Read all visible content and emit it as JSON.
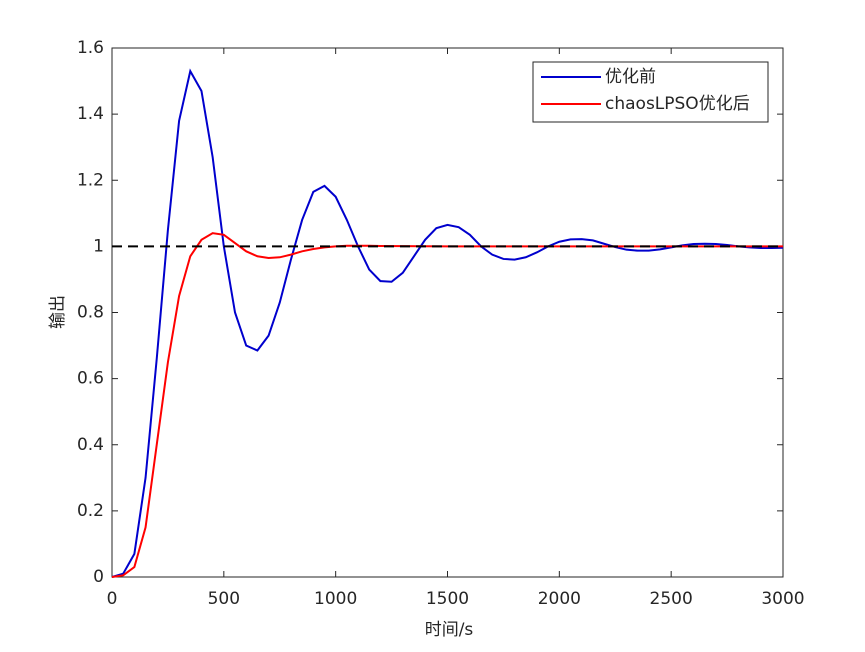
{
  "chart_data": {
    "type": "line",
    "xlabel": "时间/s",
    "ylabel": "输出",
    "xlim": [
      0,
      3000
    ],
    "xticks": [
      0,
      500,
      1000,
      1500,
      2000,
      2500,
      3000
    ],
    "ylim": [
      0,
      1.6
    ],
    "yticks": [
      0,
      0.2,
      0.4,
      0.6,
      0.8,
      1,
      1.2,
      1.4,
      1.6
    ],
    "legend": "upper right",
    "series": [
      {
        "name": "优化前",
        "color": "#0000cd",
        "x": [
          0,
          50,
          100,
          150,
          200,
          250,
          300,
          350,
          400,
          450,
          500,
          550,
          600,
          650,
          700,
          750,
          800,
          850,
          900,
          950,
          1000,
          1050,
          1100,
          1150,
          1200,
          1250,
          1300,
          1350,
          1400,
          1450,
          1500,
          1550,
          1600,
          1650,
          1700,
          1750,
          1800,
          1850,
          1900,
          1950,
          2000,
          2050,
          2100,
          2150,
          2200,
          2250,
          2300,
          2350,
          2400,
          2450,
          2500,
          2550,
          2600,
          2650,
          2700,
          2750,
          2800,
          2850,
          2900,
          2950,
          3000
        ],
        "values": [
          0,
          0.01,
          0.07,
          0.3,
          0.66,
          1.05,
          1.38,
          1.53,
          1.47,
          1.27,
          1.0,
          0.8,
          0.7,
          0.685,
          0.73,
          0.83,
          0.96,
          1.08,
          1.165,
          1.183,
          1.15,
          1.08,
          1.0,
          0.93,
          0.895,
          0.893,
          0.92,
          0.97,
          1.02,
          1.055,
          1.065,
          1.058,
          1.035,
          1.0,
          0.975,
          0.962,
          0.96,
          0.967,
          0.982,
          1.0,
          1.014,
          1.021,
          1.022,
          1.018,
          1.008,
          0.998,
          0.99,
          0.987,
          0.987,
          0.991,
          0.997,
          1.003,
          1.007,
          1.008,
          1.007,
          1.004,
          1.0,
          0.997,
          0.995,
          0.995,
          0.996
        ]
      },
      {
        "name": "chaosLPSO优化后",
        "color": "#ff0000",
        "x": [
          0,
          50,
          100,
          150,
          200,
          250,
          300,
          350,
          400,
          450,
          500,
          550,
          600,
          650,
          700,
          750,
          800,
          850,
          900,
          950,
          1000,
          1050,
          1100,
          1150,
          1200,
          1500,
          2000,
          2500,
          3000
        ],
        "values": [
          0,
          0.005,
          0.03,
          0.15,
          0.4,
          0.65,
          0.85,
          0.97,
          1.02,
          1.04,
          1.035,
          1.01,
          0.985,
          0.97,
          0.965,
          0.967,
          0.975,
          0.985,
          0.992,
          0.997,
          1.0,
          1.002,
          1.002,
          1.002,
          1.001,
          1.0,
          1.0,
          1.0,
          1.0
        ]
      },
      {
        "color": "#000000",
        "dash": true,
        "x": [
          0,
          3000
        ],
        "values": [
          1,
          1
        ]
      }
    ]
  }
}
